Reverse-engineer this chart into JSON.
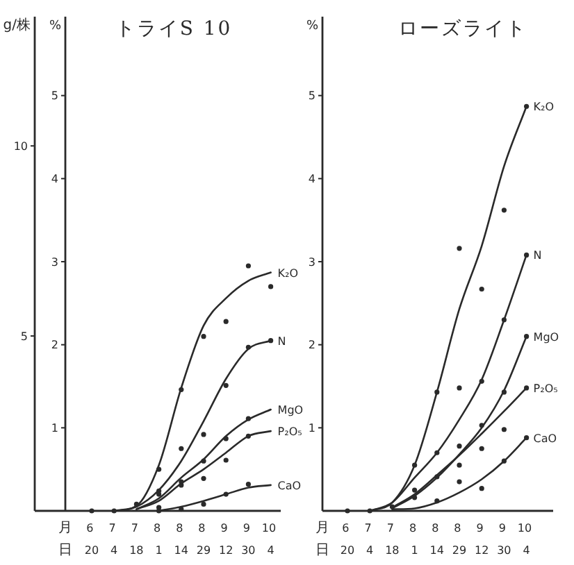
{
  "chart_data": [
    {
      "type": "line",
      "title": "トライS 10",
      "xlabel": "月日",
      "ylabel": "%",
      "y2label": "g/株",
      "categories": [
        "6 20",
        "7 4",
        "7 18",
        "8 1",
        "8 14",
        "8 29",
        "9 12",
        "9 30",
        "10 4"
      ],
      "ylim": [
        0,
        5.95
      ],
      "yticks": [
        1,
        2,
        3,
        4,
        5
      ],
      "y2lim": [
        0.4,
        13.4
      ],
      "y2ticks": [
        5,
        10
      ],
      "series": [
        {
          "name": "K₂O",
          "color": "#2a2a2a",
          "values": [
            null,
            0,
            0.06,
            0.55,
            1.48,
            2.23,
            2.56,
            2.77,
            2.87
          ]
        },
        {
          "name": "N",
          "color": "#2a2a2a",
          "values": [
            null,
            0,
            0.05,
            0.25,
            0.6,
            1.08,
            1.59,
            1.95,
            2.05
          ]
        },
        {
          "name": "MgO",
          "color": "#2a2a2a",
          "values": [
            null,
            null,
            0.02,
            0.15,
            0.4,
            0.62,
            0.9,
            1.1,
            1.22
          ]
        },
        {
          "name": "P₂O₅",
          "color": "#2a2a2a",
          "values": [
            null,
            null,
            0.02,
            0.12,
            0.33,
            0.5,
            0.7,
            0.9,
            0.96
          ]
        },
        {
          "name": "CaO",
          "color": "#2a2a2a",
          "values": [
            null,
            null,
            null,
            0,
            0.05,
            0.12,
            0.2,
            0.28,
            0.31
          ]
        },
        {
          "type": "scatter",
          "marker": "circle",
          "color": "#2a2a2a",
          "values": [
            0,
            0,
            0.08,
            0.5,
            1.46,
            2.1,
            2.28,
            2.95,
            2.7
          ]
        },
        {
          "type": "scatter",
          "marker": "circle",
          "color": "#2a2a2a",
          "values": [
            null,
            null,
            null,
            0.24,
            0.75,
            0.92,
            1.51,
            1.97,
            2.05
          ]
        },
        {
          "type": "scatter",
          "marker": "circle",
          "color": "#2a2a2a",
          "values": [
            null,
            null,
            null,
            0.2,
            0.31,
            0.6,
            0.87,
            1.11,
            null
          ]
        },
        {
          "type": "scatter",
          "marker": "circle",
          "color": "#2a2a2a",
          "values": [
            null,
            null,
            null,
            0.04,
            0.35,
            0.39,
            0.61,
            0.9,
            null
          ]
        },
        {
          "type": "scatter",
          "marker": "circle",
          "color": "#2a2a2a",
          "values": [
            null,
            null,
            null,
            0,
            0.02,
            0.08,
            0.2,
            0.32,
            null
          ]
        }
      ]
    },
    {
      "type": "line",
      "title": "ローズライト",
      "xlabel": "月日",
      "ylabel": "%",
      "categories": [
        "6 20",
        "7 4",
        "7 18",
        "8 1",
        "8 14",
        "8 29",
        "9 12",
        "9 30",
        "10 4"
      ],
      "ylim": [
        0,
        5.95
      ],
      "yticks": [
        1,
        2,
        3,
        4,
        5
      ],
      "series": [
        {
          "name": "K₂O",
          "color": "#2a2a2a",
          "values": [
            null,
            0,
            0.1,
            0.55,
            1.43,
            2.43,
            3.19,
            4.15,
            4.87
          ]
        },
        {
          "name": "N",
          "color": "#2a2a2a",
          "values": [
            null,
            0,
            0.1,
            0.4,
            0.7,
            1.1,
            1.58,
            2.3,
            3.08
          ]
        },
        {
          "name": "MgO",
          "color": "#2a2a2a",
          "values": [
            null,
            null,
            0.03,
            0.18,
            0.4,
            0.68,
            1.0,
            1.45,
            2.1
          ]
        },
        {
          "name": "P₂O₅",
          "color": "#2a2a2a",
          "values": [
            null,
            null,
            0.04,
            0.2,
            0.43,
            0.67,
            0.93,
            1.2,
            1.48
          ]
        },
        {
          "name": "CaO",
          "color": "#2a2a2a",
          "values": [
            null,
            null,
            0.02,
            0.03,
            0.1,
            0.22,
            0.38,
            0.6,
            0.88
          ]
        },
        {
          "type": "scatter",
          "marker": "circle",
          "color": "#2a2a2a",
          "values": [
            0,
            0,
            0.05,
            0.55,
            1.43,
            3.16,
            2.67,
            3.62,
            4.87
          ]
        },
        {
          "type": "scatter",
          "marker": "circle",
          "color": "#2a2a2a",
          "values": [
            null,
            null,
            null,
            0.25,
            0.7,
            1.48,
            1.56,
            2.3,
            3.08
          ]
        },
        {
          "type": "scatter",
          "marker": "circle",
          "color": "#2a2a2a",
          "values": [
            null,
            null,
            null,
            null,
            0.41,
            0.78,
            1.03,
            1.43,
            2.1
          ]
        },
        {
          "type": "scatter",
          "marker": "circle",
          "color": "#2a2a2a",
          "values": [
            null,
            null,
            null,
            0.16,
            null,
            0.55,
            0.75,
            0.98,
            1.48
          ]
        },
        {
          "type": "scatter",
          "marker": "circle",
          "color": "#2a2a2a",
          "values": [
            null,
            null,
            null,
            null,
            0.12,
            0.35,
            0.27,
            0.6,
            0.88
          ]
        }
      ]
    }
  ]
}
